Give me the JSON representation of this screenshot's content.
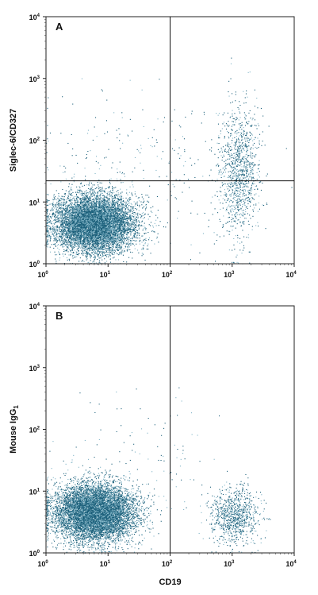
{
  "chart_data": [
    {
      "type": "scatter",
      "panel_label": "A",
      "xlabel": "",
      "ylabel": "Siglec-6/CD327",
      "x_scale": "log",
      "y_scale": "log",
      "xlim": [
        1,
        10000
      ],
      "ylim": [
        1,
        10000
      ],
      "x_ticks": [
        {
          "base": "10",
          "exp": "0"
        },
        {
          "base": "10",
          "exp": "1"
        },
        {
          "base": "10",
          "exp": "2"
        },
        {
          "base": "10",
          "exp": "3"
        },
        {
          "base": "10",
          "exp": "4"
        }
      ],
      "y_ticks": [
        {
          "base": "10",
          "exp": "0"
        },
        {
          "base": "10",
          "exp": "1"
        },
        {
          "base": "10",
          "exp": "2"
        },
        {
          "base": "10",
          "exp": "3"
        },
        {
          "base": "10",
          "exp": "4"
        }
      ],
      "quadrant_gate": {
        "x": 100,
        "y": 22
      },
      "dot_color": "#1b5f7a",
      "populations": [
        {
          "count": 9000,
          "x_center": 6,
          "y_center": 4.5,
          "x_spread_decades": 0.32,
          "y_spread_decades": 0.23
        },
        {
          "count": 1100,
          "x_center": 1300,
          "y_center": 30,
          "x_spread_decades": 0.16,
          "y_spread_decades": 0.55
        },
        {
          "count": 250,
          "x_center": 50,
          "y_center": 40,
          "x_spread_decades": 0.9,
          "y_spread_decades": 0.6
        }
      ]
    },
    {
      "type": "scatter",
      "panel_label": "B",
      "xlabel": "CD19",
      "ylabel": "Mouse IgG",
      "ylabel_subscript": "1",
      "x_scale": "log",
      "y_scale": "log",
      "xlim": [
        1,
        10000
      ],
      "ylim": [
        1,
        10000
      ],
      "x_ticks": [
        {
          "base": "10",
          "exp": "0"
        },
        {
          "base": "10",
          "exp": "1"
        },
        {
          "base": "10",
          "exp": "2"
        },
        {
          "base": "10",
          "exp": "3"
        },
        {
          "base": "10",
          "exp": "4"
        }
      ],
      "y_ticks": [
        {
          "base": "10",
          "exp": "0"
        },
        {
          "base": "10",
          "exp": "1"
        },
        {
          "base": "10",
          "exp": "2"
        },
        {
          "base": "10",
          "exp": "3"
        },
        {
          "base": "10",
          "exp": "4"
        }
      ],
      "quadrant_gate": {
        "x": 100
      },
      "dot_color": "#1b5f7a",
      "populations": [
        {
          "count": 9000,
          "x_center": 6,
          "y_center": 4.5,
          "x_spread_decades": 0.32,
          "y_spread_decades": 0.23
        },
        {
          "count": 900,
          "x_center": 1100,
          "y_center": 4,
          "x_spread_decades": 0.2,
          "y_spread_decades": 0.22
        },
        {
          "count": 120,
          "x_center": 30,
          "y_center": 30,
          "x_spread_decades": 0.7,
          "y_spread_decades": 0.5
        }
      ]
    }
  ]
}
